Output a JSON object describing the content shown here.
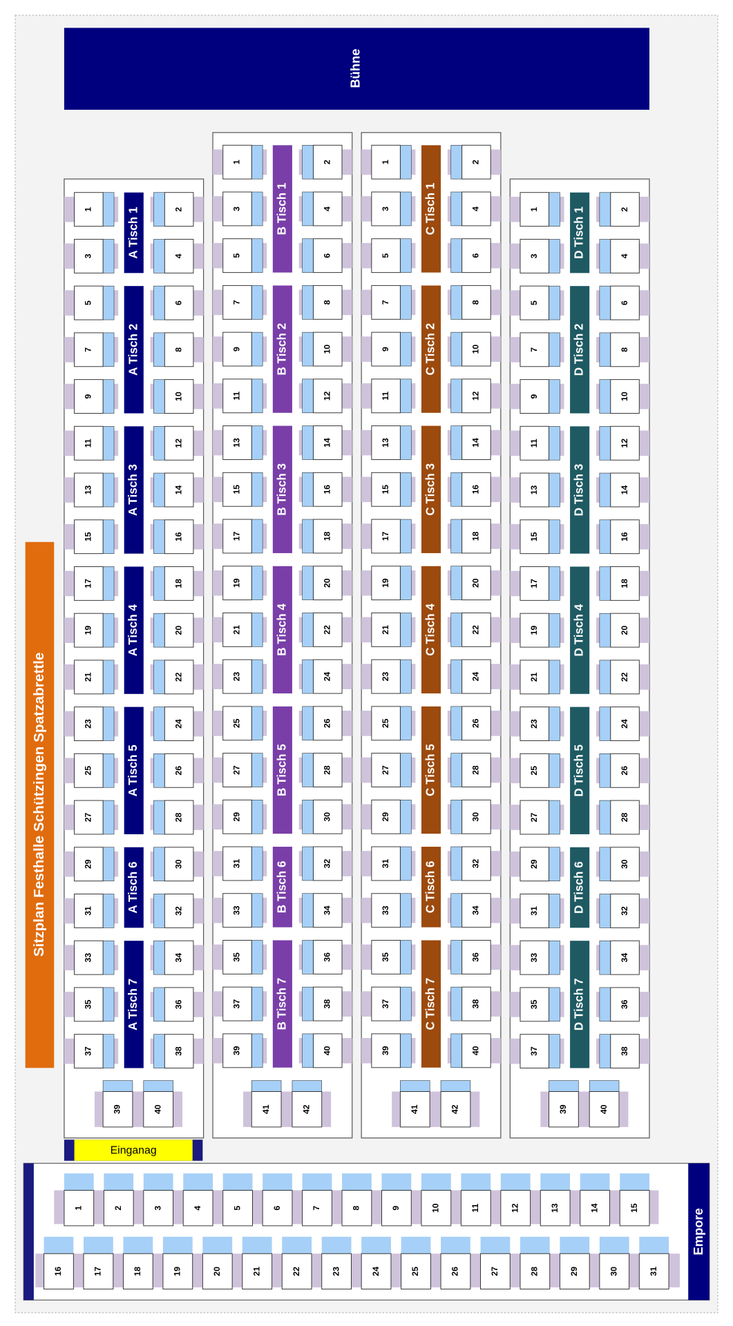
{
  "header": {
    "title": "Sitzplan Festhalle Schützingen Spatzabrettle",
    "stage": "Bühne"
  },
  "blocks": [
    {
      "color": "#00007a",
      "tables": [
        "A Tisch 1",
        "A Tisch 2",
        "A Tisch 3",
        "A Tisch 4",
        "A Tisch 5",
        "A Tisch 6",
        "A Tisch 7"
      ],
      "seats_left": [
        1,
        3,
        5,
        7,
        9,
        11,
        13,
        15,
        17,
        19,
        21,
        23,
        25,
        27,
        29,
        31,
        33,
        35,
        37
      ],
      "seats_right": [
        2,
        4,
        6,
        8,
        10,
        12,
        14,
        16,
        18,
        20,
        22,
        24,
        26,
        28,
        30,
        32,
        34,
        36,
        38
      ],
      "end_seats": [
        39,
        40
      ]
    },
    {
      "color": "#7a3ea8",
      "tables": [
        "B Tisch 1",
        "B Tisch 2",
        "B Tisch 3",
        "B Tisch 4",
        "B Tisch 5",
        "B Tisch 6",
        "B Tisch 7"
      ],
      "seats_left": [
        1,
        3,
        5,
        7,
        9,
        11,
        13,
        15,
        17,
        19,
        21,
        23,
        25,
        27,
        29,
        31,
        33,
        35,
        37,
        39
      ],
      "seats_right": [
        2,
        4,
        6,
        8,
        10,
        12,
        14,
        16,
        18,
        20,
        22,
        24,
        26,
        28,
        30,
        32,
        34,
        36,
        38,
        40
      ],
      "end_seats": [
        41,
        42
      ]
    },
    {
      "color": "#9c4a0e",
      "tables": [
        "C Tisch 1",
        "C Tisch 2",
        "C Tisch 3",
        "C Tisch 4",
        "C Tisch 5",
        "C Tisch 6",
        "C Tisch 7"
      ],
      "seats_left": [
        1,
        3,
        5,
        7,
        9,
        11,
        13,
        15,
        17,
        19,
        21,
        23,
        25,
        27,
        29,
        31,
        33,
        35,
        37,
        39
      ],
      "seats_right": [
        2,
        4,
        6,
        8,
        10,
        12,
        14,
        16,
        18,
        20,
        22,
        24,
        26,
        28,
        30,
        32,
        34,
        36,
        38,
        40
      ],
      "end_seats": [
        41,
        42
      ]
    },
    {
      "color": "#1f5a63",
      "tables": [
        "D Tisch 1",
        "D Tisch 2",
        "D Tisch 3",
        "D Tisch 4",
        "D Tisch 5",
        "D Tisch 6",
        "D Tisch 7"
      ],
      "seats_left": [
        1,
        3,
        5,
        7,
        9,
        11,
        13,
        15,
        17,
        19,
        21,
        23,
        25,
        27,
        29,
        31,
        33,
        35,
        37
      ],
      "seats_right": [
        2,
        4,
        6,
        8,
        10,
        12,
        14,
        16,
        18,
        20,
        22,
        24,
        26,
        28,
        30,
        32,
        34,
        36,
        38
      ],
      "end_seats": [
        39,
        40
      ]
    }
  ],
  "entrance": "Einganag",
  "gallery": {
    "label": "Empore",
    "row_front": [
      1,
      2,
      3,
      4,
      5,
      6,
      7,
      8,
      9,
      10,
      11,
      12,
      13,
      14,
      15
    ],
    "row_back": [
      16,
      17,
      18,
      19,
      20,
      21,
      22,
      23,
      24,
      25,
      26,
      27,
      28,
      29,
      30,
      31
    ]
  }
}
